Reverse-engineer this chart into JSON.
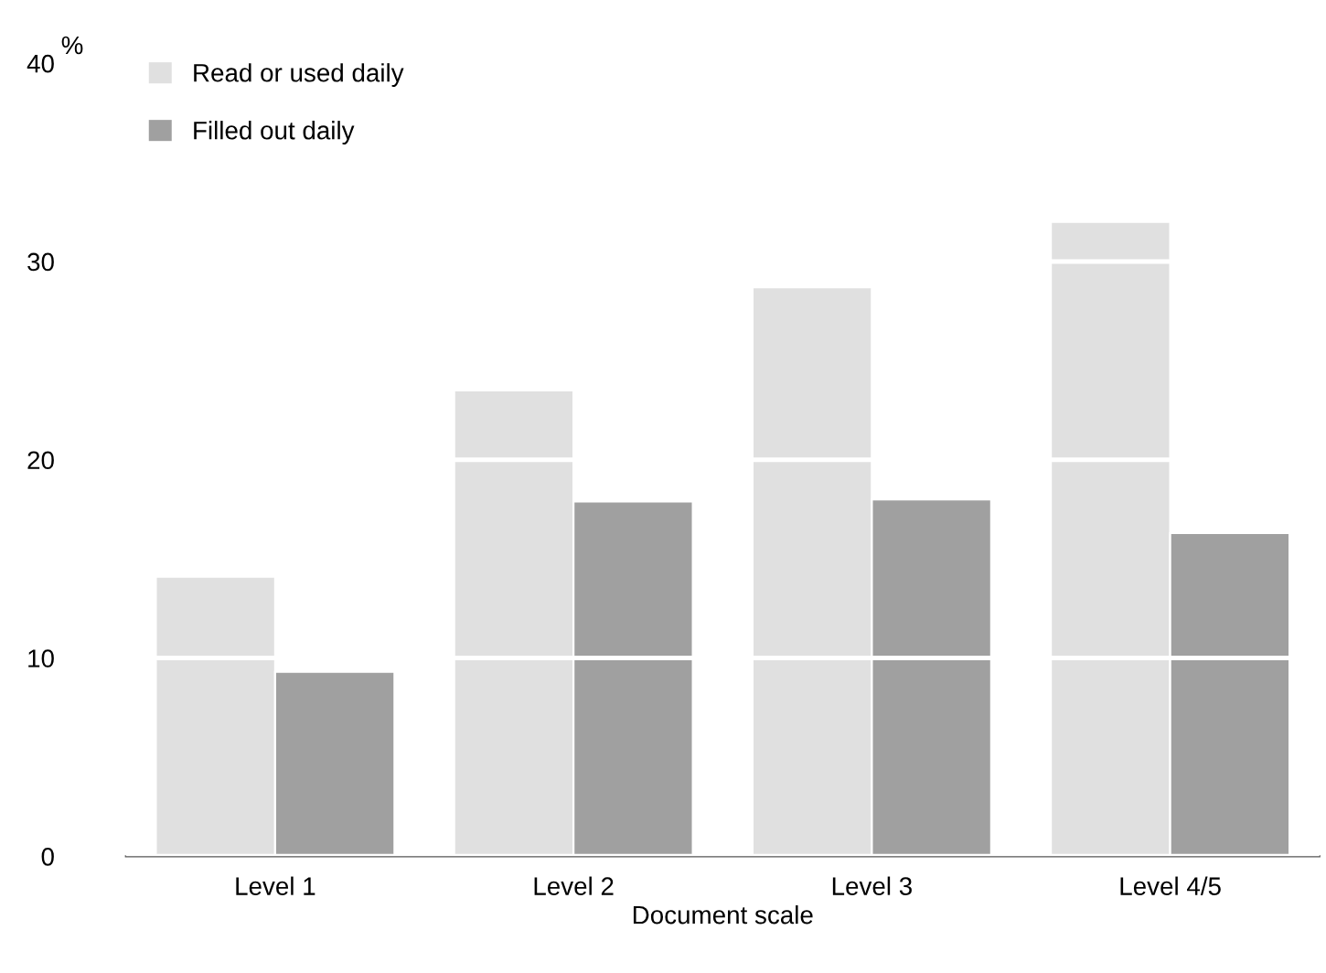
{
  "chart_data": {
    "type": "bar",
    "ylabel": "%",
    "xlabel": "Document scale",
    "categories": [
      "Level 1",
      "Level 2",
      "Level 3",
      "Level 4/5"
    ],
    "series": [
      {
        "name": "Read or used daily",
        "color": "#e0e0e0",
        "values": [
          14.1,
          23.5,
          28.7,
          32.0
        ]
      },
      {
        "name": "Filled out daily",
        "color": "#a0a0a0",
        "values": [
          9.3,
          17.9,
          18.0,
          16.3
        ]
      }
    ],
    "ylim": [
      0,
      40
    ],
    "yticks": [
      0,
      10,
      20,
      30,
      40
    ],
    "grid": "y",
    "legend": "top left"
  }
}
